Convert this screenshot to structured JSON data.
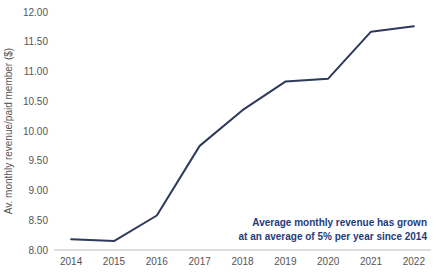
{
  "chart_data": {
    "type": "line",
    "y_label": "Av. monthly revenue/paid member ($)",
    "x": [
      2014,
      2015,
      2016,
      2017,
      2018,
      2019,
      2020,
      2021,
      2022
    ],
    "values": [
      8.18,
      8.15,
      8.58,
      9.75,
      10.35,
      10.83,
      10.88,
      11.67,
      11.76
    ],
    "color": "#2e3a5c",
    "xlim": [
      2013.6,
      2022.4
    ],
    "xticks": [
      2014,
      2015,
      2016,
      2017,
      2018,
      2019,
      2020,
      2021,
      2022
    ],
    "ylim": [
      8.0,
      12.0
    ],
    "yticks": [
      {
        "value": 8.0,
        "label": "8.00"
      },
      {
        "value": 8.5,
        "label": "8.50"
      },
      {
        "value": 9.0,
        "label": "9.00"
      },
      {
        "value": 9.5,
        "label": "9.50"
      },
      {
        "value": 10.0,
        "label": "10.00"
      },
      {
        "value": 10.5,
        "label": "10.50"
      },
      {
        "value": 11.0,
        "label": "11.00"
      },
      {
        "value": 11.5,
        "label": "11.50"
      },
      {
        "value": 12.0,
        "label": "12.00"
      }
    ],
    "annotations": [
      "Average monthly revenue has grown",
      "at an average of 5% per year since 2014"
    ],
    "grid": false
  }
}
